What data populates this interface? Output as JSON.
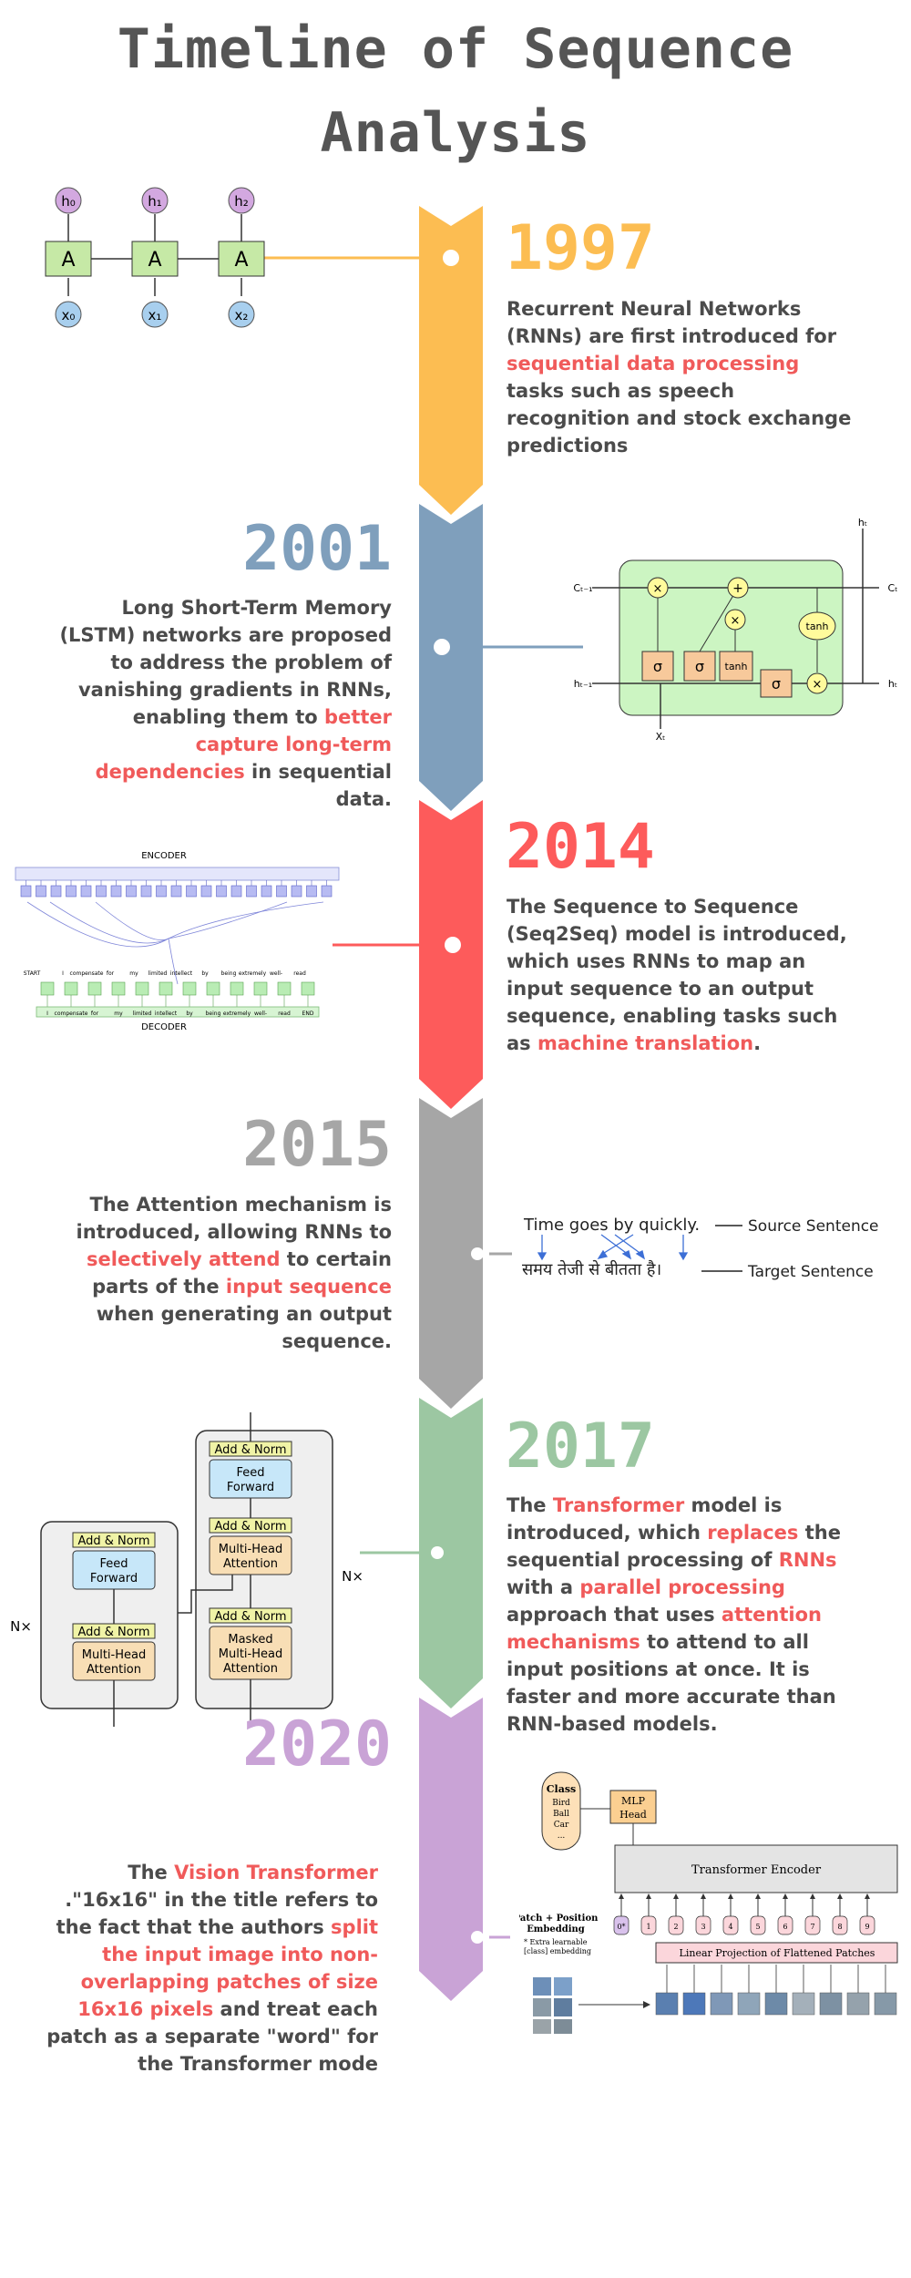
{
  "title": {
    "line1": "Timeline of Sequence",
    "line2": "Analysis"
  },
  "colors": {
    "y1997": "#fcbd52",
    "y2001": "#7f9fbc",
    "y2014": "#fd5b5b",
    "y2015": "#a6a6a6",
    "y2017": "#9cc7a2",
    "y2020": "#c9a3d6",
    "highlight": "#f05a5a"
  },
  "e1997": {
    "year": "1997",
    "t1": "Recurrent Neural Networks (RNNs) are first introduced for ",
    "h1": "sequential data processing",
    "t2": " tasks such as speech recognition and stock exchange predictions"
  },
  "e2001": {
    "year": "2001",
    "t1": "Long Short-Term Memory (LSTM) networks are proposed to address the problem of vanishing gradients in RNNs, enabling them to ",
    "h1": "better capture long-term dependencies",
    "t2": " in sequential data."
  },
  "e2014": {
    "year": "2014",
    "t1": "The Sequence to Sequence (Seq2Seq) model is introduced, which uses RNNs to map an input sequence to an output sequence, enabling tasks such as ",
    "h1": "machine translation",
    "t2": "."
  },
  "e2015": {
    "year": "2015",
    "t1": "The Attention mechanism is introduced, allowing RNNs to ",
    "h1": "selectively attend",
    "t2": " to certain parts of the ",
    "h2": "input sequence",
    "t3": " when generating an output sequence."
  },
  "e2017": {
    "year": "2017",
    "t1": "The ",
    "h1": "Transformer",
    "t2": " model is introduced, which ",
    "h2": "replaces",
    "t3": " the sequential processing of ",
    "h3": "RNNs",
    "t4": " with a ",
    "h4": "parallel processing",
    "t5": " approach that uses ",
    "h5": "attention mechanisms",
    "t6": " to attend to all input positions at once. It is faster and more accurate than RNN-based models."
  },
  "e2020": {
    "year": "2020",
    "t1": "The ",
    "h1": "Vision Transformer",
    "t2": " .\"16x16\" in the title refers to the fact that the authors ",
    "h2": "split the input image into non-overlapping patches of size 16x16 pixels",
    "t3": " and treat each patch as a separate \"word\" for the Transformer mode"
  },
  "rnn": {
    "cell": "A",
    "h0": "h₀",
    "h1": "h₁",
    "h2": "h₂",
    "x0": "x₀",
    "x1": "x₁",
    "x2": "x₂"
  },
  "lstm": {
    "ct_prev": "Cₜ₋₁",
    "ct": "Cₜ",
    "ht_prev": "hₜ₋₁",
    "ht": "hₜ",
    "ht_top": "hₜ",
    "xt": "Xₜ",
    "times": "×",
    "plus": "+",
    "sigma": "σ",
    "tanh": "tanh"
  },
  "seq2seq": {
    "encoder": "ENCODER",
    "decoder": "DECODER",
    "start": "START",
    "end": "END",
    "out_tokens": [
      "I",
      "compensate",
      "for",
      "my",
      "limited",
      "intellect",
      "by",
      "being",
      "extremely",
      "well-",
      "read"
    ],
    "bottom_tokens": [
      "I",
      "compensate",
      "for",
      "my",
      "limited",
      "intellect",
      "by",
      "being",
      "extremely",
      "well-",
      "read",
      "END"
    ]
  },
  "attention": {
    "source": "Time goes by quickly.",
    "target": "समय तेजी से बीतता है।",
    "source_label": "Source Sentence",
    "target_label": "Target Sentence"
  },
  "transformer": {
    "add_norm": "Add & Norm",
    "feed": "Feed",
    "forward": "Forward",
    "multi": "Multi-Head",
    "attn": "Attention",
    "masked": "Masked",
    "nx": "N×"
  },
  "vit": {
    "class": "Class",
    "bird": "Bird",
    "ball": "Ball",
    "car": "Car",
    "dots": "...",
    "mlp1": "MLP",
    "mlp2": "Head",
    "encoder": "Transformer Encoder",
    "pp1": "Patch + Position",
    "pp2": "Embedding",
    "extra1": "* Extra learnable",
    "extra2": "[class] embedding",
    "linear": "Linear Projection of Flattened Patches",
    "tokens": [
      "0*",
      "1",
      "2",
      "3",
      "4",
      "5",
      "6",
      "7",
      "8",
      "9"
    ]
  }
}
